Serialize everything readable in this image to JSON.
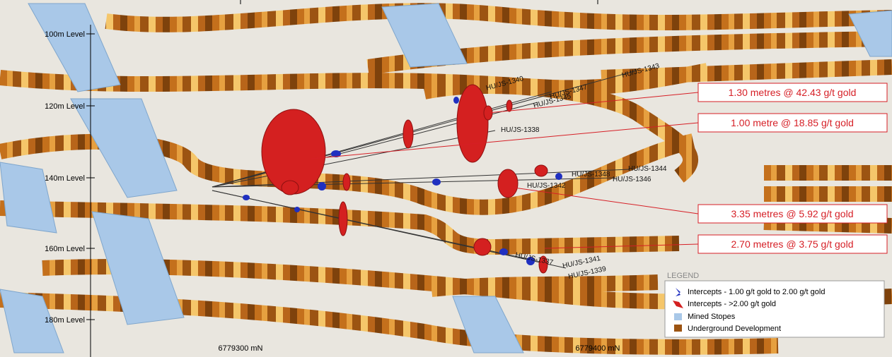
{
  "levels": [
    "100m Level",
    "120m Level",
    "140m Level",
    "160m Level",
    "180m Level"
  ],
  "northings": [
    "6779300 mN",
    "6779400 mN"
  ],
  "drillholes": [
    "HU/JS-1340",
    "HU/JS-1343",
    "HU/JS-1347",
    "HU/JS-1345",
    "HU/JS-1338",
    "HU/JS-1348",
    "HU/JS-1344",
    "HU/JS-1342",
    "HU/JS-1346",
    "HU/JS-1337",
    "HU/JS-1341",
    "HU/JS-1339"
  ],
  "callouts": [
    "1.30 metres @ 42.43 g/t gold",
    "1.00 metre @ 18.85 g/t gold",
    "3.35 metres @ 5.92 g/t gold",
    "2.70 metres @ 3.75 g/t gold"
  ],
  "legend": {
    "title": "LEGEND",
    "items": [
      "Intercepts - 1.00 g/t gold to 2.00 g/t gold",
      "Intercepts - >2.00 g/t gold",
      "Mined Stopes",
      "Underground Development"
    ]
  }
}
